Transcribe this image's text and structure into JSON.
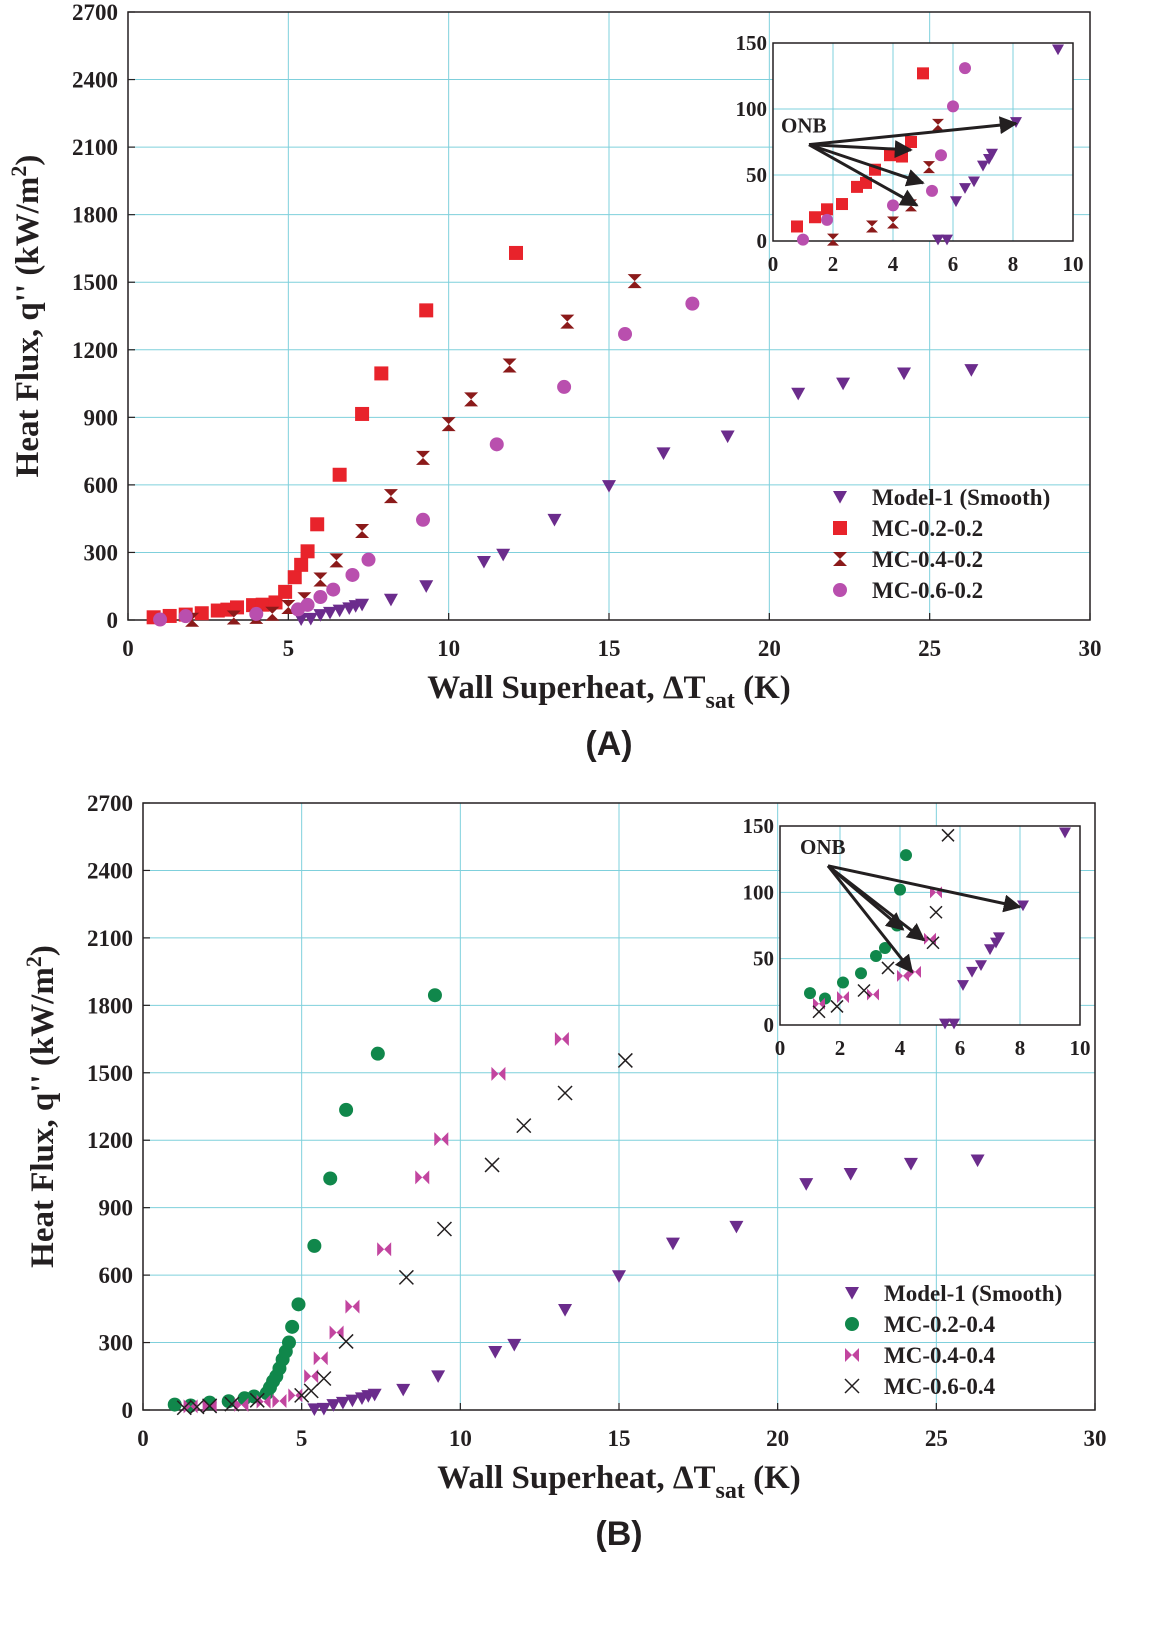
{
  "chart_data": [
    {
      "type": "scatter",
      "panel_label": "(A)",
      "xlabel": "Wall Superheat, ΔT",
      "xlabel_sub": "sat",
      "xlabel_unit": " (K)",
      "ylabel": "Heat Flux, q'' (kW/m",
      "ylabel_sup": "2",
      "ylabel_end": ")",
      "xlim": [
        0,
        30
      ],
      "ylim": [
        0,
        2700
      ],
      "xticks": [
        0,
        5,
        10,
        15,
        20,
        25,
        30
      ],
      "yticks": [
        0,
        300,
        600,
        900,
        1200,
        1500,
        1800,
        2100,
        2400,
        2700
      ],
      "grid": true,
      "legend_position": "lower-right",
      "series": [
        {
          "name": "Model-1 (Smooth)",
          "marker": "triangle-down",
          "color": "#6b2c8c",
          "points": [
            [
              5.4,
              3
            ],
            [
              5.7,
              5
            ],
            [
              6.0,
              22
            ],
            [
              6.3,
              32
            ],
            [
              6.6,
              42
            ],
            [
              6.9,
              52
            ],
            [
              7.1,
              62
            ],
            [
              7.3,
              68
            ],
            [
              8.2,
              90
            ],
            [
              9.3,
              150
            ],
            [
              11.1,
              258
            ],
            [
              11.7,
              290
            ],
            [
              13.3,
              445
            ],
            [
              15.0,
              595
            ],
            [
              16.7,
              740
            ],
            [
              18.7,
              815
            ],
            [
              20.9,
              1005
            ],
            [
              22.3,
              1050
            ],
            [
              24.2,
              1095
            ],
            [
              26.3,
              1110
            ]
          ]
        },
        {
          "name": "MC-0.2-0.2",
          "marker": "square",
          "color": "#e8232b",
          "points": [
            [
              0.8,
              12
            ],
            [
              1.3,
              18
            ],
            [
              1.8,
              24
            ],
            [
              2.3,
              30
            ],
            [
              2.8,
              42
            ],
            [
              3.1,
              46
            ],
            [
              3.4,
              56
            ],
            [
              3.9,
              66
            ],
            [
              4.2,
              68
            ],
            [
              4.6,
              78
            ],
            [
              4.9,
              125
            ],
            [
              5.2,
              190
            ],
            [
              5.4,
              245
            ],
            [
              5.6,
              305
            ],
            [
              5.9,
              425
            ],
            [
              6.6,
              645
            ],
            [
              7.3,
              915
            ],
            [
              7.9,
              1095
            ],
            [
              9.3,
              1375
            ],
            [
              12.1,
              1630
            ]
          ]
        },
        {
          "name": "MC-0.4-0.2",
          "marker": "hourglass",
          "color": "#8b1a1a",
          "points": [
            [
              2.0,
              1
            ],
            [
              3.3,
              11
            ],
            [
              4.0,
              14
            ],
            [
              4.5,
              28
            ],
            [
              5.0,
              58
            ],
            [
              5.5,
              92
            ],
            [
              6.0,
              180
            ],
            [
              6.5,
              265
            ],
            [
              7.3,
              395
            ],
            [
              8.2,
              550
            ],
            [
              9.2,
              720
            ],
            [
              10.0,
              870
            ],
            [
              10.7,
              980
            ],
            [
              11.9,
              1130
            ],
            [
              13.7,
              1325
            ],
            [
              15.8,
              1505
            ]
          ]
        },
        {
          "name": "MC-0.6-0.2",
          "marker": "circle",
          "color": "#b94fae",
          "points": [
            [
              1.0,
              2
            ],
            [
              1.8,
              17
            ],
            [
              4.0,
              27
            ],
            [
              5.3,
              47
            ],
            [
              5.6,
              67
            ],
            [
              6.0,
              102
            ],
            [
              6.4,
              135
            ],
            [
              7.0,
              200
            ],
            [
              7.5,
              268
            ],
            [
              9.2,
              445
            ],
            [
              11.5,
              780
            ],
            [
              13.6,
              1035
            ],
            [
              15.5,
              1270
            ],
            [
              17.6,
              1405
            ]
          ]
        }
      ],
      "inset": {
        "xlim": [
          0,
          10
        ],
        "ylim": [
          0,
          150
        ],
        "xticks": [
          0,
          2,
          4,
          6,
          8,
          10
        ],
        "yticks": [
          0,
          50,
          100,
          150
        ],
        "annotation": "ONB",
        "series": [
          {
            "name": "Model-1 (Smooth)",
            "points": [
              [
                5.5,
                1
              ],
              [
                5.8,
                1
              ],
              [
                6.1,
                30
              ],
              [
                6.4,
                40
              ],
              [
                6.7,
                45
              ],
              [
                7.0,
                57
              ],
              [
                7.2,
                62
              ],
              [
                7.3,
                66
              ],
              [
                8.1,
                90
              ],
              [
                9.5,
                145
              ]
            ]
          },
          {
            "name": "MC-0.2-0.2",
            "points": [
              [
                0.8,
                11
              ],
              [
                1.4,
                18
              ],
              [
                1.8,
                24
              ],
              [
                2.3,
                28
              ],
              [
                2.8,
                41
              ],
              [
                3.1,
                44
              ],
              [
                3.4,
                54
              ],
              [
                3.9,
                65
              ],
              [
                4.3,
                64
              ],
              [
                4.6,
                75
              ],
              [
                5.0,
                127
              ]
            ]
          },
          {
            "name": "MC-0.4-0.2",
            "points": [
              [
                2.0,
                1
              ],
              [
                3.3,
                11
              ],
              [
                4.0,
                14
              ],
              [
                4.6,
                27
              ],
              [
                5.2,
                56
              ],
              [
                5.5,
                88
              ]
            ]
          },
          {
            "name": "MC-0.6-0.2",
            "points": [
              [
                1.0,
                1
              ],
              [
                1.8,
                16
              ],
              [
                4.0,
                27
              ],
              [
                5.3,
                38
              ],
              [
                5.6,
                65
              ],
              [
                6.0,
                102
              ],
              [
                6.4,
                131
              ]
            ]
          }
        ],
        "arrows": [
          {
            "from": [
              1.2,
              73
            ],
            "to": [
              8.1,
              89
            ]
          },
          {
            "from": [
              1.2,
              73
            ],
            "to": [
              4.6,
              69
            ]
          },
          {
            "from": [
              1.2,
              73
            ],
            "to": [
              5.0,
              44
            ]
          },
          {
            "from": [
              1.2,
              73
            ],
            "to": [
              4.8,
              27
            ]
          }
        ]
      }
    },
    {
      "type": "scatter",
      "panel_label": "(B)",
      "xlabel": "Wall Superheat, ΔT",
      "xlabel_sub": "sat",
      "xlabel_unit": " (K)",
      "ylabel": "Heat Flux, q'' (kW/m",
      "ylabel_sup": "2",
      "ylabel_end": ")",
      "xlim": [
        0,
        30
      ],
      "ylim": [
        0,
        2700
      ],
      "xticks": [
        0,
        5,
        10,
        15,
        20,
        25,
        30
      ],
      "yticks": [
        0,
        300,
        600,
        900,
        1200,
        1500,
        1800,
        2100,
        2400,
        2700
      ],
      "grid": true,
      "legend_position": "lower-right",
      "series": [
        {
          "name": "Model-1 (Smooth)",
          "marker": "triangle-down",
          "color": "#6b2c8c",
          "points": [
            [
              5.4,
              3
            ],
            [
              5.7,
              5
            ],
            [
              6.0,
              22
            ],
            [
              6.3,
              32
            ],
            [
              6.6,
              42
            ],
            [
              6.9,
              52
            ],
            [
              7.1,
              62
            ],
            [
              7.3,
              68
            ],
            [
              8.2,
              90
            ],
            [
              9.3,
              150
            ],
            [
              11.1,
              258
            ],
            [
              11.7,
              290
            ],
            [
              13.3,
              445
            ],
            [
              15.0,
              595
            ],
            [
              16.7,
              740
            ],
            [
              18.7,
              815
            ],
            [
              20.9,
              1005
            ],
            [
              22.3,
              1050
            ],
            [
              24.2,
              1095
            ],
            [
              26.3,
              1110
            ]
          ]
        },
        {
          "name": "MC-0.2-0.4",
          "marker": "circle",
          "color": "#10874b",
          "points": [
            [
              1.0,
              24
            ],
            [
              1.5,
              20
            ],
            [
              2.1,
              33
            ],
            [
              2.7,
              39
            ],
            [
              3.2,
              52
            ],
            [
              3.5,
              60
            ],
            [
              3.9,
              75
            ],
            [
              4.0,
              100
            ],
            [
              4.1,
              128
            ],
            [
              4.2,
              150
            ],
            [
              4.3,
              185
            ],
            [
              4.4,
              225
            ],
            [
              4.5,
              260
            ],
            [
              4.6,
              300
            ],
            [
              4.7,
              370
            ],
            [
              4.9,
              470
            ],
            [
              5.4,
              730
            ],
            [
              5.9,
              1030
            ],
            [
              6.4,
              1335
            ],
            [
              7.4,
              1585
            ],
            [
              9.2,
              1845
            ]
          ]
        },
        {
          "name": "MC-0.4-0.4",
          "marker": "bowtie",
          "color": "#c2459f",
          "points": [
            [
              1.5,
              16
            ],
            [
              2.1,
              21
            ],
            [
              3.1,
              23
            ],
            [
              3.8,
              37
            ],
            [
              4.3,
              40
            ],
            [
              4.8,
              65
            ],
            [
              5.3,
              150
            ],
            [
              5.6,
              230
            ],
            [
              6.1,
              345
            ],
            [
              6.6,
              460
            ],
            [
              7.6,
              715
            ],
            [
              8.8,
              1035
            ],
            [
              9.4,
              1205
            ],
            [
              11.2,
              1495
            ],
            [
              13.2,
              1650
            ]
          ]
        },
        {
          "name": "MC-0.6-0.4",
          "marker": "x",
          "color": "#231f20",
          "points": [
            [
              1.3,
              10
            ],
            [
              1.7,
              14
            ],
            [
              2.1,
              18
            ],
            [
              2.8,
              26
            ],
            [
              3.6,
              43
            ],
            [
              5.0,
              65
            ],
            [
              5.3,
              85
            ],
            [
              5.7,
              140
            ],
            [
              6.4,
              305
            ],
            [
              8.3,
              590
            ],
            [
              9.5,
              805
            ],
            [
              11.0,
              1090
            ],
            [
              12.0,
              1265
            ],
            [
              13.3,
              1410
            ],
            [
              15.2,
              1555
            ]
          ]
        }
      ],
      "inset": {
        "xlim": [
          0,
          10
        ],
        "ylim": [
          0,
          150
        ],
        "xticks": [
          0,
          2,
          4,
          6,
          8,
          10
        ],
        "yticks": [
          0,
          50,
          100,
          150
        ],
        "annotation": "ONB",
        "series": [
          {
            "name": "Model-1 (Smooth)",
            "points": [
              [
                5.5,
                1
              ],
              [
                5.8,
                1
              ],
              [
                6.1,
                30
              ],
              [
                6.4,
                40
              ],
              [
                6.7,
                45
              ],
              [
                7.0,
                57
              ],
              [
                7.2,
                62
              ],
              [
                7.3,
                66
              ],
              [
                8.1,
                90
              ],
              [
                9.5,
                145
              ]
            ]
          },
          {
            "name": "MC-0.2-0.4",
            "points": [
              [
                1.0,
                24
              ],
              [
                1.5,
                20
              ],
              [
                2.1,
                32
              ],
              [
                2.7,
                39
              ],
              [
                3.2,
                52
              ],
              [
                3.5,
                58
              ],
              [
                3.9,
                75
              ],
              [
                4.0,
                102
              ],
              [
                4.2,
                128
              ]
            ]
          },
          {
            "name": "MC-0.4-0.4",
            "points": [
              [
                1.3,
                16
              ],
              [
                2.1,
                21
              ],
              [
                3.1,
                23
              ],
              [
                4.1,
                37
              ],
              [
                4.5,
                40
              ],
              [
                5.0,
                65
              ],
              [
                5.2,
                100
              ]
            ]
          },
          {
            "name": "MC-0.6-0.4",
            "points": [
              [
                1.3,
                10
              ],
              [
                1.9,
                14
              ],
              [
                2.8,
                26
              ],
              [
                3.6,
                43
              ],
              [
                5.1,
                62
              ],
              [
                5.2,
                85
              ],
              [
                5.6,
                143
              ]
            ]
          }
        ],
        "arrows": [
          {
            "from": [
              1.6,
              120
            ],
            "to": [
              8.0,
              89
            ]
          },
          {
            "from": [
              1.6,
              120
            ],
            "to": [
              4.1,
              72
            ]
          },
          {
            "from": [
              1.6,
              120
            ],
            "to": [
              4.8,
              64
            ]
          },
          {
            "from": [
              1.6,
              120
            ],
            "to": [
              4.4,
              40
            ]
          }
        ]
      }
    }
  ]
}
